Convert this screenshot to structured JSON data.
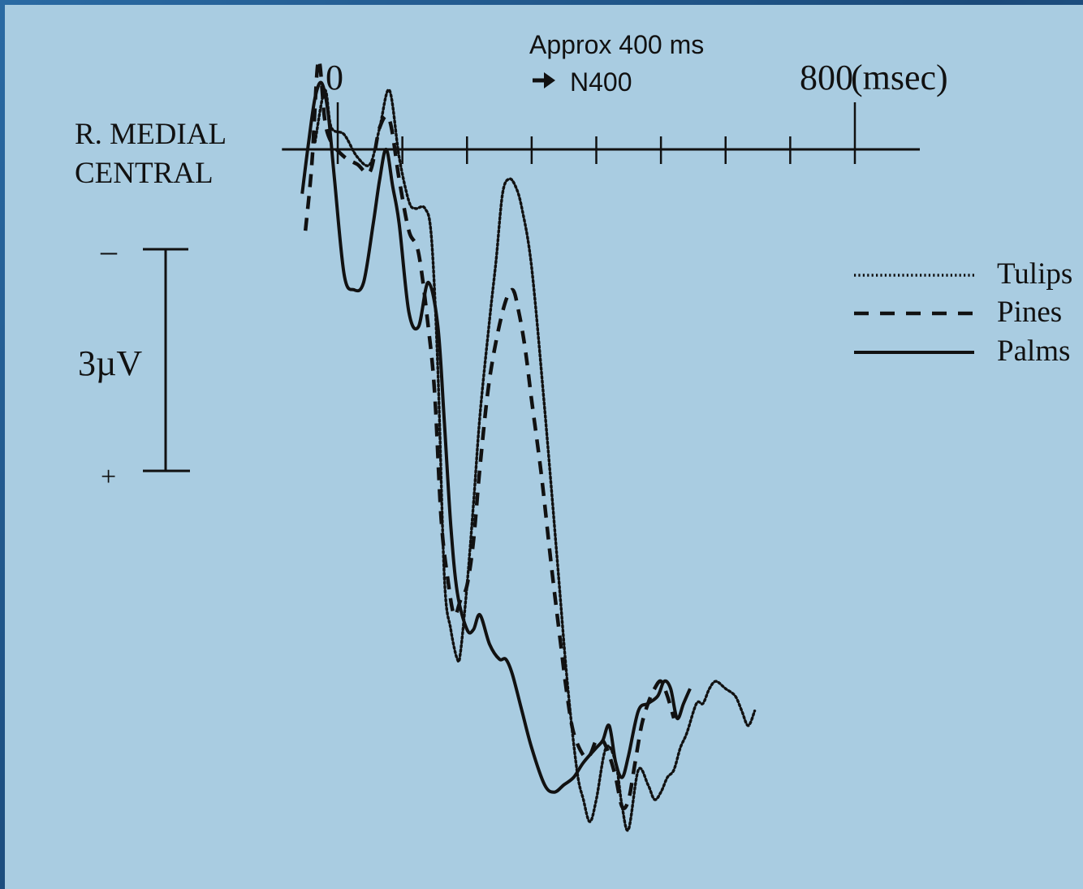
{
  "chart_data": {
    "type": "line",
    "channel_label": [
      "R. MEDIAL",
      "CENTRAL"
    ],
    "x_unit_label": "(msec)",
    "x_ticks": [
      {
        "value": 0,
        "label": "0"
      },
      {
        "value": 100,
        "label": ""
      },
      {
        "value": 200,
        "label": ""
      },
      {
        "value": 300,
        "label": ""
      },
      {
        "value": 400,
        "label": ""
      },
      {
        "value": 500,
        "label": ""
      },
      {
        "value": 600,
        "label": ""
      },
      {
        "value": 700,
        "label": ""
      },
      {
        "value": 800,
        "label": "800"
      }
    ],
    "xlim": [
      -80,
      900
    ],
    "ylim": [
      -4.0,
      9.3
    ],
    "y_inverted": true,
    "annotation": {
      "line1": "Approx 400 ms",
      "line2": "N400",
      "arrow": "arrow-right-icon"
    },
    "scale_bar": {
      "label": "3µV",
      "minus": "–",
      "plus": "+",
      "microvolts": 3
    },
    "series": [
      {
        "name": "Tulips",
        "style": "dotted",
        "points": [
          [
            -35,
            -0.1
          ],
          [
            -20,
            -0.8
          ],
          [
            -10,
            -0.3
          ],
          [
            10,
            -0.2
          ],
          [
            30,
            0.1
          ],
          [
            50,
            0.2
          ],
          [
            65,
            -0.3
          ],
          [
            80,
            -0.8
          ],
          [
            95,
            0.1
          ],
          [
            110,
            0.7
          ],
          [
            120,
            0.8
          ],
          [
            135,
            0.8
          ],
          [
            145,
            1.2
          ],
          [
            155,
            3.0
          ],
          [
            165,
            5.8
          ],
          [
            175,
            6.5
          ],
          [
            185,
            6.9
          ],
          [
            190,
            6.8
          ],
          [
            200,
            5.9
          ],
          [
            210,
            4.8
          ],
          [
            220,
            3.6
          ],
          [
            235,
            2.3
          ],
          [
            245,
            1.5
          ],
          [
            255,
            0.6
          ],
          [
            265,
            0.4
          ],
          [
            275,
            0.5
          ],
          [
            285,
            0.8
          ],
          [
            300,
            1.6
          ],
          [
            320,
            3.5
          ],
          [
            340,
            5.6
          ],
          [
            355,
            7.2
          ],
          [
            370,
            8.4
          ],
          [
            380,
            8.8
          ],
          [
            390,
            9.1
          ],
          [
            400,
            8.8
          ],
          [
            415,
            8.1
          ],
          [
            430,
            8.3
          ],
          [
            440,
            8.9
          ],
          [
            450,
            9.2
          ],
          [
            465,
            8.4
          ],
          [
            480,
            8.6
          ],
          [
            490,
            8.8
          ],
          [
            500,
            8.7
          ],
          [
            510,
            8.5
          ],
          [
            520,
            8.4
          ],
          [
            530,
            8.1
          ],
          [
            540,
            7.9
          ],
          [
            555,
            7.5
          ],
          [
            565,
            7.5
          ],
          [
            575,
            7.3
          ],
          [
            585,
            7.2
          ],
          [
            600,
            7.3
          ],
          [
            615,
            7.4
          ],
          [
            625,
            7.6
          ],
          [
            635,
            7.8
          ],
          [
            645,
            7.6
          ]
        ]
      },
      {
        "name": "Pines",
        "style": "dashed",
        "points": [
          [
            -50,
            1.1
          ],
          [
            -40,
            0.2
          ],
          [
            -30,
            -1.2
          ],
          [
            -20,
            -0.4
          ],
          [
            -10,
            -0.1
          ],
          [
            10,
            0.1
          ],
          [
            30,
            0.2
          ],
          [
            50,
            0.3
          ],
          [
            65,
            -0.3
          ],
          [
            80,
            -0.4
          ],
          [
            95,
            0.4
          ],
          [
            110,
            1.1
          ],
          [
            125,
            1.4
          ],
          [
            140,
            2.4
          ],
          [
            150,
            3.3
          ],
          [
            160,
            5.0
          ],
          [
            170,
            5.8
          ],
          [
            180,
            6.3
          ],
          [
            190,
            6.1
          ],
          [
            200,
            5.9
          ],
          [
            210,
            5.3
          ],
          [
            220,
            4.3
          ],
          [
            235,
            3.1
          ],
          [
            255,
            2.2
          ],
          [
            270,
            1.9
          ],
          [
            280,
            2.2
          ],
          [
            290,
            2.7
          ],
          [
            300,
            3.4
          ],
          [
            315,
            4.4
          ],
          [
            330,
            5.6
          ],
          [
            345,
            6.7
          ],
          [
            355,
            7.4
          ],
          [
            365,
            7.9
          ],
          [
            380,
            8.2
          ],
          [
            390,
            8.2
          ],
          [
            400,
            8.0
          ],
          [
            410,
            8.0
          ],
          [
            420,
            8.2
          ],
          [
            430,
            8.5
          ],
          [
            440,
            8.9
          ],
          [
            450,
            8.8
          ],
          [
            460,
            8.3
          ],
          [
            470,
            7.8
          ],
          [
            480,
            7.5
          ],
          [
            490,
            7.3
          ],
          [
            500,
            7.2
          ],
          [
            510,
            7.4
          ],
          [
            520,
            7.7
          ]
        ]
      },
      {
        "name": "Palms",
        "style": "solid",
        "points": [
          [
            -55,
            0.6
          ],
          [
            -45,
            -0.1
          ],
          [
            -35,
            -0.7
          ],
          [
            -25,
            -0.9
          ],
          [
            -15,
            -0.5
          ],
          [
            -5,
            0.4
          ],
          [
            10,
            1.7
          ],
          [
            25,
            1.9
          ],
          [
            40,
            1.8
          ],
          [
            55,
            1.0
          ],
          [
            65,
            0.4
          ],
          [
            75,
            0.0
          ],
          [
            85,
            0.5
          ],
          [
            95,
            1.0
          ],
          [
            110,
            2.2
          ],
          [
            125,
            2.4
          ],
          [
            140,
            1.8
          ],
          [
            155,
            2.4
          ],
          [
            165,
            3.7
          ],
          [
            175,
            5.1
          ],
          [
            185,
            6.0
          ],
          [
            200,
            6.5
          ],
          [
            210,
            6.5
          ],
          [
            220,
            6.3
          ],
          [
            235,
            6.7
          ],
          [
            250,
            6.9
          ],
          [
            260,
            6.9
          ],
          [
            270,
            7.1
          ],
          [
            285,
            7.6
          ],
          [
            300,
            8.1
          ],
          [
            320,
            8.6
          ],
          [
            335,
            8.7
          ],
          [
            350,
            8.6
          ],
          [
            365,
            8.5
          ],
          [
            380,
            8.3
          ],
          [
            400,
            8.1
          ],
          [
            410,
            8.0
          ],
          [
            420,
            7.8
          ],
          [
            430,
            8.3
          ],
          [
            440,
            8.5
          ],
          [
            450,
            8.2
          ],
          [
            465,
            7.6
          ],
          [
            480,
            7.5
          ],
          [
            495,
            7.4
          ],
          [
            505,
            7.2
          ],
          [
            515,
            7.3
          ],
          [
            525,
            7.7
          ],
          [
            535,
            7.5
          ],
          [
            545,
            7.3
          ]
        ]
      }
    ]
  }
}
